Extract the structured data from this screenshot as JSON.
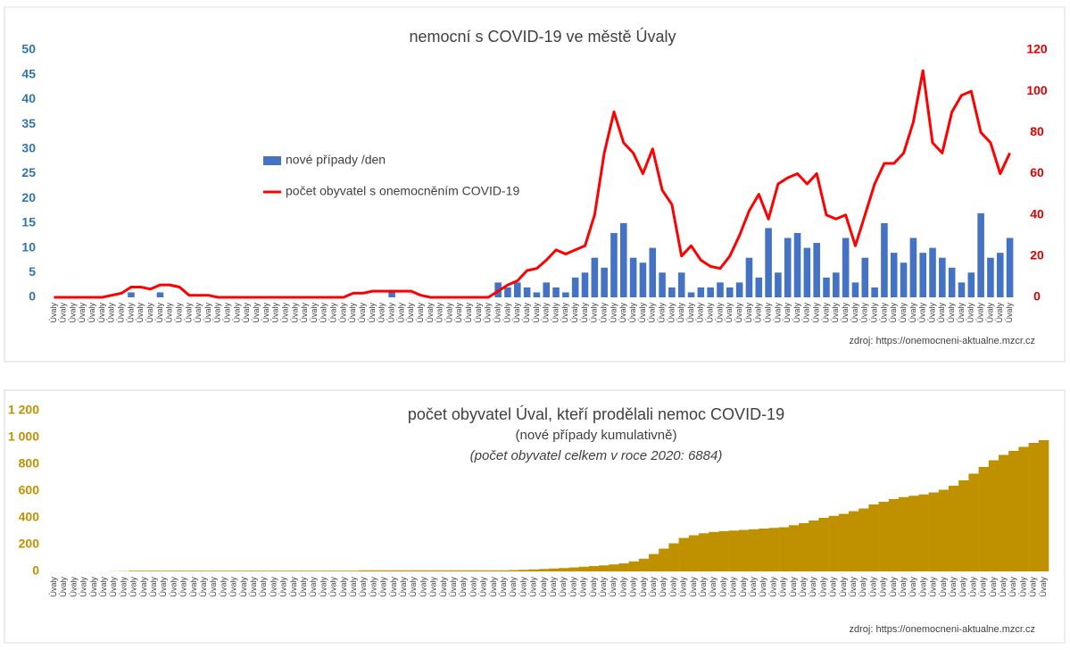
{
  "chart_data": [
    {
      "type": "combo",
      "title": "nemocní s COVID-19 ve městě Úvaly",
      "source": "zdroj: https://onemocneni-aktualne.mzcr.cz",
      "categories": [
        "Úvaly",
        "Úvaly",
        "Úvaly",
        "Úvaly",
        "Úvaly",
        "Úvaly",
        "Úvaly",
        "Úvaly",
        "Úvaly",
        "Úvaly",
        "Úvaly",
        "Úvaly",
        "Úvaly",
        "Úvaly",
        "Úvaly",
        "Úvaly",
        "Úvaly",
        "Úvaly",
        "Úvaly",
        "Úvaly",
        "Úvaly",
        "Úvaly",
        "Úvaly",
        "Úvaly",
        "Úvaly",
        "Úvaly",
        "Úvaly",
        "Úvaly",
        "Úvaly",
        "Úvaly",
        "Úvaly",
        "Úvaly",
        "Úvaly",
        "Úvaly",
        "Úvaly",
        "Úvaly",
        "Úvaly",
        "Úvaly",
        "Úvaly",
        "Úvaly",
        "Úvaly",
        "Úvaly",
        "Úvaly",
        "Úvaly",
        "Úvaly",
        "Úvaly",
        "Úvaly",
        "Úvaly",
        "Úvaly",
        "Úvaly",
        "Úvaly",
        "Úvaly",
        "Úvaly",
        "Úvaly",
        "Úvaly",
        "Úvaly",
        "Úvaly",
        "Úvaly",
        "Úvaly",
        "Úvaly",
        "Úvaly",
        "Úvaly",
        "Úvaly",
        "Úvaly",
        "Úvaly",
        "Úvaly",
        "Úvaly",
        "Úvaly",
        "Úvaly",
        "Úvaly",
        "Úvaly",
        "Úvaly",
        "Úvaly",
        "Úvaly",
        "Úvaly",
        "Úvaly",
        "Úvaly",
        "Úvaly",
        "Úvaly",
        "Úvaly",
        "Úvaly",
        "Úvaly",
        "Úvaly",
        "Úvaly",
        "Úvaly",
        "Úvaly",
        "Úvaly",
        "Úvaly",
        "Úvaly",
        "Úvaly",
        "Úvaly",
        "Úvaly",
        "Úvaly",
        "Úvaly",
        "Úvaly",
        "Úvaly",
        "Úvaly",
        "Úvaly",
        "Úvaly",
        "Úvaly"
      ],
      "series": [
        {
          "name": "nové případy /den",
          "color": "#4472c4",
          "kind": "bar",
          "values": [
            0,
            0,
            0,
            0,
            0,
            0,
            0,
            0,
            1,
            0,
            0,
            1,
            0,
            0,
            0,
            0,
            0,
            0,
            0,
            0,
            0,
            0,
            0,
            0,
            0,
            0,
            0,
            0,
            0,
            0,
            0,
            0,
            0,
            0,
            0,
            1,
            0,
            0,
            0,
            0,
            0,
            0,
            0,
            0,
            0,
            0,
            3,
            2,
            3,
            2,
            1,
            3,
            2,
            1,
            4,
            5,
            8,
            6,
            13,
            15,
            8,
            7,
            10,
            5,
            2,
            5,
            1,
            2,
            2,
            3,
            2,
            3,
            8,
            4,
            14,
            5,
            12,
            13,
            10,
            11,
            4,
            5,
            12,
            3,
            8,
            2,
            15,
            9,
            7,
            12,
            9,
            10,
            8,
            6,
            3,
            5,
            17,
            8,
            9,
            12
          ]
        },
        {
          "name": "počet obyvatel s onemocněním COVID-19",
          "color": "#ff0000",
          "kind": "line",
          "axis": "y2",
          "values": [
            0,
            0,
            0,
            0,
            0,
            0,
            1,
            2,
            5,
            5,
            4,
            6,
            6,
            5,
            1,
            1,
            1,
            0,
            0,
            0,
            0,
            0,
            0,
            0,
            0,
            0,
            0,
            0,
            0,
            0,
            0,
            2,
            2,
            3,
            3,
            3,
            3,
            3,
            1,
            0,
            0,
            0,
            0,
            0,
            0,
            0,
            3,
            6,
            8,
            13,
            14,
            18,
            23,
            21,
            23,
            25,
            40,
            70,
            90,
            75,
            70,
            60,
            72,
            52,
            45,
            20,
            25,
            18,
            15,
            14,
            20,
            30,
            42,
            50,
            38,
            55,
            58,
            60,
            55,
            60,
            40,
            38,
            40,
            25,
            40,
            55,
            65,
            65,
            70,
            85,
            110,
            75,
            70,
            90,
            98,
            100,
            80,
            75,
            60,
            70
          ]
        }
      ],
      "ylim": [
        0,
        50
      ],
      "yticks": [
        0,
        5,
        10,
        15,
        20,
        25,
        30,
        35,
        40,
        45,
        50
      ],
      "y2lim": [
        0,
        120
      ],
      "y2ticks": [
        0,
        20,
        40,
        60,
        80,
        100,
        120
      ]
    },
    {
      "type": "bar",
      "title": "počet obyvatel Úval, kteří prodělali nemoc COVID-19",
      "subtitle": "(nové případy kumulativně)",
      "note": "(počet obyvatel celkem v roce 2020: 6884)",
      "source": "zdroj: https://onemocneni-aktualne.mzcr.cz",
      "categories": [
        "Úvaly",
        "Úvaly",
        "Úvaly",
        "Úvaly",
        "Úvaly",
        "Úvaly",
        "Úvaly",
        "Úvaly",
        "Úvaly",
        "Úvaly",
        "Úvaly",
        "Úvaly",
        "Úvaly",
        "Úvaly",
        "Úvaly",
        "Úvaly",
        "Úvaly",
        "Úvaly",
        "Úvaly",
        "Úvaly",
        "Úvaly",
        "Úvaly",
        "Úvaly",
        "Úvaly",
        "Úvaly",
        "Úvaly",
        "Úvaly",
        "Úvaly",
        "Úvaly",
        "Úvaly",
        "Úvaly",
        "Úvaly",
        "Úvaly",
        "Úvaly",
        "Úvaly",
        "Úvaly",
        "Úvaly",
        "Úvaly",
        "Úvaly",
        "Úvaly",
        "Úvaly",
        "Úvaly",
        "Úvaly",
        "Úvaly",
        "Úvaly",
        "Úvaly",
        "Úvaly",
        "Úvaly",
        "Úvaly",
        "Úvaly",
        "Úvaly",
        "Úvaly",
        "Úvaly",
        "Úvaly",
        "Úvaly",
        "Úvaly",
        "Úvaly",
        "Úvaly",
        "Úvaly",
        "Úvaly",
        "Úvaly",
        "Úvaly",
        "Úvaly",
        "Úvaly",
        "Úvaly",
        "Úvaly",
        "Úvaly",
        "Úvaly",
        "Úvaly",
        "Úvaly",
        "Úvaly",
        "Úvaly",
        "Úvaly",
        "Úvaly",
        "Úvaly",
        "Úvaly",
        "Úvaly",
        "Úvaly",
        "Úvaly",
        "Úvaly",
        "Úvaly",
        "Úvaly",
        "Úvaly",
        "Úvaly",
        "Úvaly",
        "Úvaly",
        "Úvaly",
        "Úvaly",
        "Úvaly",
        "Úvaly",
        "Úvaly",
        "Úvaly",
        "Úvaly",
        "Úvaly",
        "Úvaly",
        "Úvaly",
        "Úvaly",
        "Úvaly",
        "Úvaly",
        "Úvaly"
      ],
      "color": "#bf9000",
      "values": [
        0,
        0,
        0,
        0,
        0,
        0,
        1,
        2,
        5,
        5,
        5,
        5,
        5,
        5,
        5,
        5,
        5,
        5,
        5,
        5,
        5,
        5,
        5,
        5,
        5,
        5,
        5,
        5,
        5,
        5,
        5,
        8,
        8,
        8,
        8,
        8,
        8,
        8,
        8,
        8,
        8,
        8,
        8,
        8,
        8,
        8,
        10,
        12,
        15,
        18,
        22,
        25,
        30,
        35,
        40,
        45,
        52,
        60,
        75,
        95,
        130,
        170,
        210,
        250,
        270,
        285,
        295,
        300,
        305,
        310,
        315,
        320,
        325,
        330,
        345,
        360,
        380,
        400,
        415,
        430,
        450,
        470,
        500,
        520,
        540,
        555,
        565,
        575,
        590,
        610,
        640,
        680,
        730,
        780,
        830,
        870,
        900,
        930,
        960,
        980
      ],
      "ylim": [
        0,
        1200
      ],
      "yticks": [
        0,
        200,
        400,
        600,
        800,
        {
          "value": 1000,
          "label": "1 000"
        },
        {
          "value": 1200,
          "label": "1 200"
        }
      ]
    }
  ]
}
